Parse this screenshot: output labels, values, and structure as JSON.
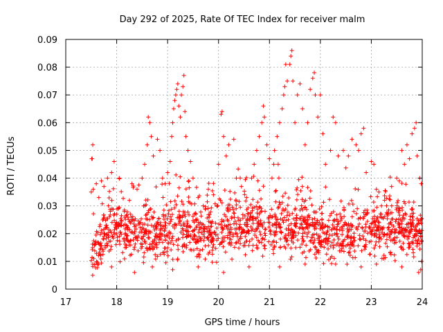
{
  "chart_data": {
    "type": "scatter",
    "title": "Day 292 of 2025, Rate Of TEC Index for receiver malm",
    "xlabel": "GPS time / hours",
    "ylabel": "ROTI / TECUs",
    "xlim": [
      17,
      24
    ],
    "ylim": [
      0,
      0.09
    ],
    "x_ticks": [
      17,
      18,
      19,
      20,
      21,
      22,
      23,
      24
    ],
    "x_tick_labels": [
      "17",
      "18",
      "19",
      "20",
      "21",
      "22",
      "23",
      "24"
    ],
    "y_ticks": [
      0,
      0.01,
      0.02,
      0.03,
      0.04,
      0.05,
      0.06,
      0.07,
      0.08,
      0.09
    ],
    "y_tick_labels": [
      "0",
      "0.01",
      "0.02",
      "0.03",
      "0.04",
      "0.05",
      "0.06",
      "0.07",
      "0.08",
      "0.09"
    ],
    "grid": true,
    "marker": "+",
    "color": "#ff0000",
    "series": [
      {
        "name": "ROTI",
        "points": [
          [
            17.5,
            0.035
          ],
          [
            17.51,
            0.047
          ],
          [
            17.52,
            0.047
          ],
          [
            17.53,
            0.052
          ],
          [
            17.54,
            0.036
          ],
          [
            17.6,
            0.038
          ],
          [
            17.65,
            0.033
          ],
          [
            17.7,
            0.039
          ],
          [
            17.75,
            0.037
          ],
          [
            17.82,
            0.04
          ],
          [
            17.9,
            0.042
          ],
          [
            17.95,
            0.046
          ],
          [
            18.05,
            0.04
          ],
          [
            18.15,
            0.028
          ],
          [
            18.25,
            0.032
          ],
          [
            18.3,
            0.038
          ],
          [
            18.4,
            0.036
          ],
          [
            18.5,
            0.04
          ],
          [
            18.55,
            0.045
          ],
          [
            18.6,
            0.052
          ],
          [
            18.62,
            0.062
          ],
          [
            18.65,
            0.06
          ],
          [
            18.68,
            0.055
          ],
          [
            18.72,
            0.048
          ],
          [
            18.8,
            0.054
          ],
          [
            18.85,
            0.05
          ],
          [
            18.9,
            0.04
          ],
          [
            18.95,
            0.038
          ],
          [
            19.0,
            0.042
          ],
          [
            19.05,
            0.046
          ],
          [
            19.08,
            0.055
          ],
          [
            19.1,
            0.06
          ],
          [
            19.12,
            0.065
          ],
          [
            19.14,
            0.068
          ],
          [
            19.16,
            0.07
          ],
          [
            19.18,
            0.072
          ],
          [
            19.2,
            0.074
          ],
          [
            19.22,
            0.066
          ],
          [
            19.25,
            0.062
          ],
          [
            19.27,
            0.07
          ],
          [
            19.3,
            0.073
          ],
          [
            19.32,
            0.077
          ],
          [
            19.34,
            0.064
          ],
          [
            19.36,
            0.055
          ],
          [
            19.4,
            0.05
          ],
          [
            19.45,
            0.046
          ],
          [
            19.5,
            0.04
          ],
          [
            19.6,
            0.033
          ],
          [
            19.7,
            0.03
          ],
          [
            19.8,
            0.036
          ],
          [
            19.9,
            0.034
          ],
          [
            20.0,
            0.045
          ],
          [
            20.05,
            0.063
          ],
          [
            20.07,
            0.064
          ],
          [
            20.1,
            0.055
          ],
          [
            20.15,
            0.048
          ],
          [
            20.2,
            0.052
          ],
          [
            20.3,
            0.054
          ],
          [
            20.35,
            0.04
          ],
          [
            20.45,
            0.037
          ],
          [
            20.55,
            0.033
          ],
          [
            20.65,
            0.04
          ],
          [
            20.7,
            0.045
          ],
          [
            20.75,
            0.05
          ],
          [
            20.8,
            0.055
          ],
          [
            20.85,
            0.06
          ],
          [
            20.88,
            0.066
          ],
          [
            20.9,
            0.062
          ],
          [
            20.95,
            0.052
          ],
          [
            21.0,
            0.047
          ],
          [
            21.05,
            0.04
          ],
          [
            21.1,
            0.05
          ],
          [
            21.15,
            0.055
          ],
          [
            21.2,
            0.06
          ],
          [
            21.25,
            0.065
          ],
          [
            21.28,
            0.07
          ],
          [
            21.3,
            0.073
          ],
          [
            21.32,
            0.081
          ],
          [
            21.35,
            0.075
          ],
          [
            21.4,
            0.081
          ],
          [
            21.42,
            0.084
          ],
          [
            21.44,
            0.086
          ],
          [
            21.46,
            0.075
          ],
          [
            21.5,
            0.06
          ],
          [
            21.55,
            0.07
          ],
          [
            21.6,
            0.074
          ],
          [
            21.65,
            0.065
          ],
          [
            21.7,
            0.052
          ],
          [
            21.75,
            0.06
          ],
          [
            21.8,
            0.072
          ],
          [
            21.85,
            0.076
          ],
          [
            21.88,
            0.078
          ],
          [
            21.9,
            0.07
          ],
          [
            21.95,
            0.062
          ],
          [
            22.0,
            0.07
          ],
          [
            22.05,
            0.056
          ],
          [
            22.1,
            0.045
          ],
          [
            22.2,
            0.05
          ],
          [
            22.25,
            0.062
          ],
          [
            22.3,
            0.06
          ],
          [
            22.35,
            0.048
          ],
          [
            22.45,
            0.05
          ],
          [
            22.55,
            0.048
          ],
          [
            22.62,
            0.054
          ],
          [
            22.7,
            0.052
          ],
          [
            22.75,
            0.05
          ],
          [
            22.8,
            0.056
          ],
          [
            22.85,
            0.058
          ],
          [
            22.9,
            0.042
          ],
          [
            23.0,
            0.046
          ],
          [
            23.05,
            0.045
          ],
          [
            23.1,
            0.036
          ],
          [
            23.15,
            0.035
          ],
          [
            23.2,
            0.03
          ],
          [
            23.3,
            0.03
          ],
          [
            23.4,
            0.03
          ],
          [
            23.5,
            0.04
          ],
          [
            23.55,
            0.039
          ],
          [
            23.6,
            0.05
          ],
          [
            23.65,
            0.045
          ],
          [
            23.7,
            0.052
          ],
          [
            23.75,
            0.047
          ],
          [
            23.8,
            0.056
          ],
          [
            23.85,
            0.058
          ],
          [
            23.88,
            0.06
          ],
          [
            23.9,
            0.048
          ],
          [
            23.95,
            0.04
          ],
          [
            23.98,
            0.038
          ],
          [
            23.99,
            0.01
          ],
          [
            23.97,
            0.007
          ],
          [
            23.93,
            0.006
          ],
          [
            23.6,
            0.008
          ],
          [
            23.1,
            0.009
          ],
          [
            22.8,
            0.008
          ],
          [
            22.3,
            0.009
          ],
          [
            21.7,
            0.009
          ],
          [
            21.2,
            0.008
          ],
          [
            20.6,
            0.008
          ],
          [
            20.1,
            0.006
          ],
          [
            19.6,
            0.008
          ],
          [
            19.1,
            0.007
          ],
          [
            18.7,
            0.008
          ],
          [
            18.35,
            0.006
          ],
          [
            17.9,
            0.008
          ],
          [
            17.55,
            0.011
          ]
        ],
        "dense_band": [
          0.014,
          0.02,
          0.022,
          0.021,
          0.02,
          0.019,
          0.019,
          0.021,
          0.022,
          0.02,
          0.02,
          0.021,
          0.022,
          0.022,
          0.023,
          0.022,
          0.023,
          0.022,
          0.022,
          0.022,
          0.02,
          0.019,
          0.021,
          0.02,
          0.021,
          0.022,
          0.021,
          0.022,
          0.022,
          0.02
        ],
        "dense_range": [
          17.5,
          24.0
        ],
        "dense_count": 1600
      }
    ]
  }
}
